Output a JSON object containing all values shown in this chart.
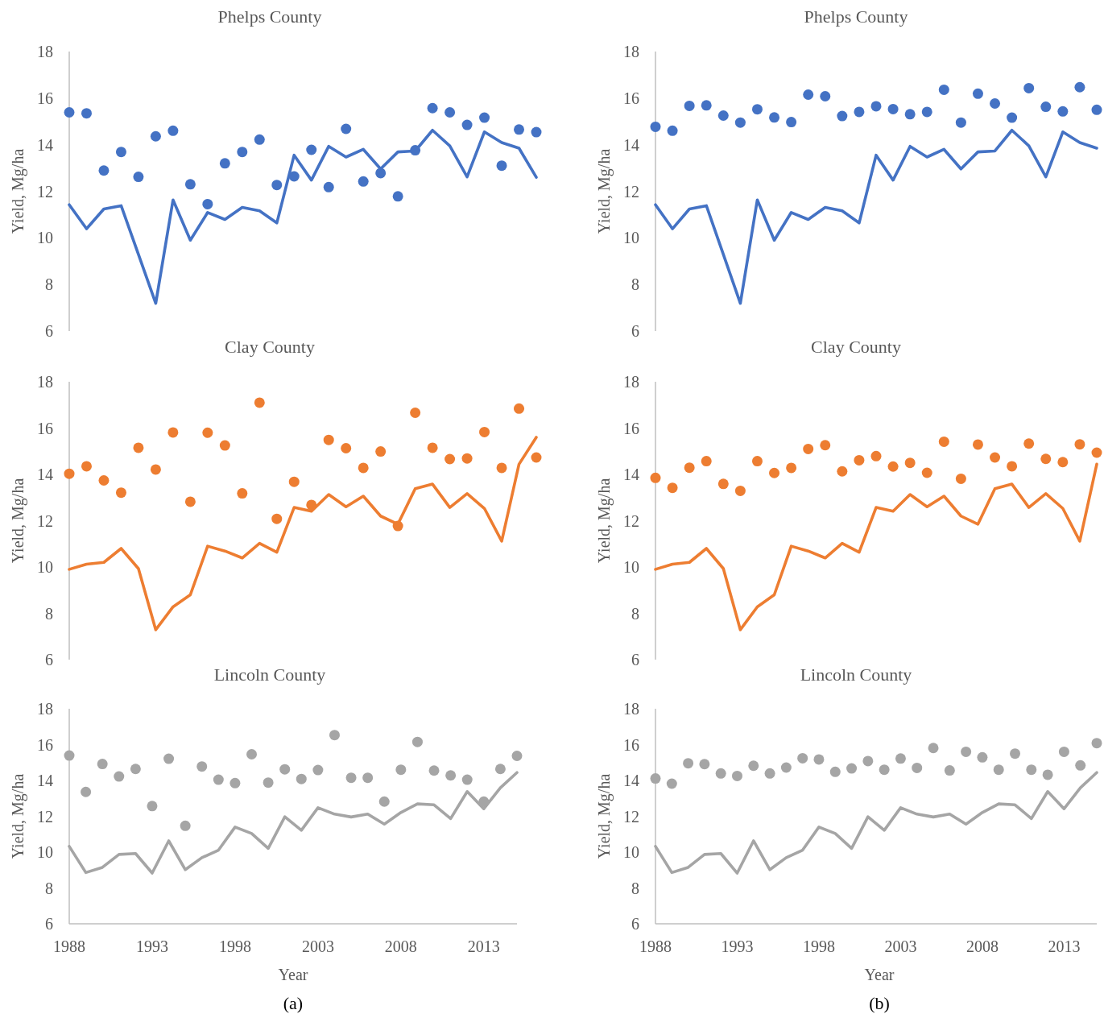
{
  "chart_data": [
    {
      "type": "line",
      "title": "Phelps County",
      "ylabel": "Yield, Mg/ha",
      "ylim": [
        6,
        18
      ],
      "yticks": [
        6,
        8,
        10,
        12,
        14,
        16,
        18
      ],
      "tick_labels": "y",
      "grid": false,
      "categories": [
        null,
        null,
        null,
        null,
        null,
        null,
        null,
        null,
        null,
        null,
        null,
        null,
        null,
        null,
        null,
        null,
        null,
        null,
        null,
        null,
        null,
        null,
        null,
        null,
        null,
        null,
        null,
        null
      ],
      "series": [
        {
          "type": "line",
          "color": "#4472c4",
          "line_style": "solid",
          "values": [
            11.42,
            10.39,
            11.24,
            11.38,
            9.29,
            7.19,
            11.63,
            9.9,
            11.09,
            10.79,
            11.31,
            11.16,
            10.64,
            13.55,
            12.48,
            13.93,
            13.47,
            13.8,
            12.96,
            13.69,
            13.73,
            14.62,
            13.95,
            12.62,
            14.55,
            14.09,
            13.85,
            12.6
          ]
        },
        {
          "type": "scatter",
          "color": "#4472c4",
          "marker": "circle",
          "values": [
            15.39,
            15.35,
            12.89,
            13.69,
            12.62,
            14.36,
            14.6,
            12.3,
            11.45,
            13.2,
            13.69,
            14.22,
            12.27,
            12.64,
            13.78,
            12.18,
            14.68,
            12.42,
            12.78,
            11.78,
            13.76,
            15.57,
            15.39,
            14.85,
            15.16,
            13.1,
            14.65,
            14.54
          ]
        }
      ]
    },
    {
      "type": "line",
      "title": "Phelps County",
      "ylabel": "Yield, Mg/ha",
      "ylim": [
        6,
        18
      ],
      "yticks": [
        6,
        8,
        10,
        12,
        14,
        16,
        18
      ],
      "tick_labels": "y",
      "grid": false,
      "categories": [
        null,
        null,
        null,
        null,
        null,
        null,
        null,
        null,
        null,
        null,
        null,
        null,
        null,
        null,
        null,
        null,
        null,
        null,
        null,
        null,
        null,
        null,
        null,
        null,
        null,
        null,
        null
      ],
      "series": [
        {
          "type": "line",
          "color": "#4472c4",
          "line_style": "solid",
          "values": [
            11.42,
            10.39,
            11.24,
            11.38,
            9.29,
            7.19,
            11.63,
            9.9,
            11.09,
            10.79,
            11.31,
            11.16,
            10.64,
            13.55,
            12.48,
            13.93,
            13.47,
            13.8,
            12.96,
            13.69,
            13.73,
            14.62,
            13.95,
            12.62,
            14.55,
            14.09,
            13.85
          ]
        },
        {
          "type": "scatter",
          "color": "#4472c4",
          "marker": "circle",
          "values": [
            14.77,
            14.6,
            15.67,
            15.69,
            15.25,
            14.95,
            15.52,
            15.17,
            14.97,
            16.15,
            16.08,
            15.23,
            15.41,
            15.65,
            15.53,
            15.31,
            15.41,
            16.36,
            14.95,
            16.19,
            15.77,
            15.16,
            16.43,
            15.63,
            15.43,
            16.47,
            15.5
          ]
        }
      ]
    },
    {
      "type": "line",
      "title": "Clay County",
      "ylabel": "Yield, Mg/ha",
      "ylim": [
        6,
        18
      ],
      "yticks": [
        6,
        8,
        10,
        12,
        14,
        16,
        18
      ],
      "tick_labels": "y",
      "grid": false,
      "categories": [
        null,
        null,
        null,
        null,
        null,
        null,
        null,
        null,
        null,
        null,
        null,
        null,
        null,
        null,
        null,
        null,
        null,
        null,
        null,
        null,
        null,
        null,
        null,
        null,
        null,
        null,
        null,
        null
      ],
      "series": [
        {
          "type": "line",
          "color": "#ed7d31",
          "line_style": "solid",
          "values": [
            9.9,
            10.12,
            10.2,
            10.8,
            9.93,
            7.29,
            8.28,
            8.8,
            10.9,
            10.69,
            10.39,
            11.02,
            10.64,
            12.57,
            12.41,
            13.13,
            12.6,
            13.06,
            12.2,
            11.85,
            13.38,
            13.58,
            12.57,
            13.17,
            12.53,
            11.12,
            14.44,
            15.6
          ]
        },
        {
          "type": "scatter",
          "color": "#ed7d31",
          "marker": "circle",
          "values": [
            14.03,
            14.35,
            13.74,
            13.21,
            15.15,
            14.21,
            15.81,
            12.82,
            15.8,
            15.25,
            13.18,
            17.1,
            12.08,
            13.68,
            12.68,
            15.49,
            15.13,
            14.28,
            14.99,
            11.77,
            16.66,
            15.15,
            14.66,
            14.69,
            15.83,
            14.28,
            16.84,
            14.73
          ]
        }
      ]
    },
    {
      "type": "line",
      "title": "Clay County",
      "ylabel": "Yield, Mg/ha",
      "ylim": [
        6,
        18
      ],
      "yticks": [
        6,
        8,
        10,
        12,
        14,
        16,
        18
      ],
      "tick_labels": "y",
      "grid": false,
      "categories": [
        null,
        null,
        null,
        null,
        null,
        null,
        null,
        null,
        null,
        null,
        null,
        null,
        null,
        null,
        null,
        null,
        null,
        null,
        null,
        null,
        null,
        null,
        null,
        null,
        null,
        null,
        null
      ],
      "series": [
        {
          "type": "line",
          "color": "#ed7d31",
          "line_style": "solid",
          "values": [
            9.9,
            10.12,
            10.2,
            10.8,
            9.93,
            7.29,
            8.28,
            8.8,
            10.9,
            10.69,
            10.39,
            11.02,
            10.64,
            12.57,
            12.41,
            13.13,
            12.6,
            13.06,
            12.2,
            11.85,
            13.38,
            13.58,
            12.57,
            13.17,
            12.53,
            11.12,
            14.44
          ]
        },
        {
          "type": "scatter",
          "color": "#ed7d31",
          "marker": "circle",
          "values": [
            13.85,
            13.42,
            14.29,
            14.57,
            13.59,
            13.29,
            14.57,
            14.06,
            14.28,
            15.1,
            15.26,
            14.13,
            14.61,
            14.79,
            14.34,
            14.5,
            14.07,
            15.41,
            13.81,
            15.29,
            14.73,
            14.35,
            15.33,
            14.67,
            14.53,
            15.3,
            14.94
          ]
        }
      ]
    },
    {
      "type": "line",
      "title": "Lincoln County",
      "ylabel": "Yield, Mg/ha",
      "xlabel": "Year",
      "annotations": [
        "(a)"
      ],
      "xlim": [
        1988,
        2015
      ],
      "xticks": [
        1988,
        1993,
        1998,
        2003,
        2008,
        2013
      ],
      "ylim": [
        6,
        18
      ],
      "yticks": [
        6,
        8,
        10,
        12,
        14,
        16,
        18
      ],
      "grid": false,
      "x": [
        1988,
        1989,
        1990,
        1991,
        1992,
        1993,
        1994,
        1995,
        1996,
        1997,
        1998,
        1999,
        2000,
        2001,
        2002,
        2003,
        2004,
        2005,
        2006,
        2007,
        2008,
        2009,
        2010,
        2011,
        2012,
        2013,
        2014,
        2015
      ],
      "series": [
        {
          "type": "line",
          "color": "#a5a5a5",
          "line_style": "solid",
          "values": [
            10.32,
            8.86,
            9.15,
            9.87,
            9.92,
            8.83,
            10.63,
            9.02,
            9.69,
            10.11,
            11.4,
            11.04,
            10.21,
            11.97,
            11.22,
            12.48,
            12.12,
            11.96,
            12.12,
            11.56,
            12.21,
            12.69,
            12.64,
            11.87,
            13.38,
            12.42,
            13.59,
            14.44
          ]
        },
        {
          "type": "scatter",
          "color": "#a5a5a5",
          "marker": "circle",
          "values": [
            15.39,
            13.36,
            14.92,
            14.22,
            14.64,
            12.57,
            15.21,
            11.47,
            14.78,
            14.04,
            13.85,
            15.46,
            13.88,
            14.62,
            14.08,
            14.58,
            16.53,
            14.15,
            14.15,
            12.82,
            14.6,
            16.15,
            14.55,
            14.28,
            14.04,
            12.82,
            14.64,
            15.37
          ]
        }
      ]
    },
    {
      "type": "line",
      "title": "Lincoln County",
      "ylabel": "Yield, Mg/ha",
      "xlabel": "Year",
      "annotations": [
        "(b)"
      ],
      "xlim": [
        1988,
        2015
      ],
      "xticks": [
        1988,
        1993,
        1998,
        2003,
        2008,
        2013
      ],
      "ylim": [
        6,
        18
      ],
      "yticks": [
        6,
        8,
        10,
        12,
        14,
        16,
        18
      ],
      "grid": false,
      "x": [
        1988,
        1989,
        1990,
        1991,
        1992,
        1993,
        1994,
        1995,
        1996,
        1997,
        1998,
        1999,
        2000,
        2001,
        2002,
        2003,
        2004,
        2005,
        2006,
        2007,
        2008,
        2009,
        2010,
        2011,
        2012,
        2013,
        2014,
        2015
      ],
      "series": [
        {
          "type": "line",
          "color": "#a5a5a5",
          "line_style": "solid",
          "values": [
            10.32,
            8.86,
            9.15,
            9.87,
            9.92,
            8.83,
            10.63,
            9.02,
            9.69,
            10.11,
            11.4,
            11.04,
            10.21,
            11.97,
            11.22,
            12.48,
            12.12,
            11.96,
            12.12,
            11.56,
            12.21,
            12.69,
            12.64,
            11.87,
            13.38,
            12.42,
            13.59,
            14.44
          ]
        },
        {
          "type": "scatter",
          "color": "#a5a5a5",
          "marker": "circle",
          "values": [
            14.11,
            13.82,
            14.96,
            14.91,
            14.39,
            14.25,
            14.82,
            14.39,
            14.72,
            15.24,
            15.17,
            14.48,
            14.67,
            15.08,
            14.6,
            15.22,
            14.7,
            15.81,
            14.56,
            15.6,
            15.29,
            14.6,
            15.5,
            14.6,
            14.32,
            15.6,
            14.84,
            16.08
          ]
        }
      ]
    }
  ]
}
